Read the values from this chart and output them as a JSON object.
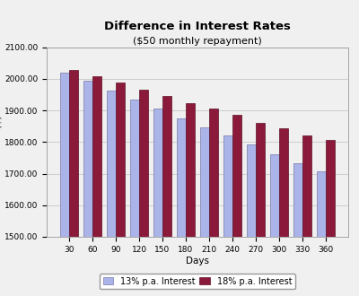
{
  "title": "Difference in Interest Rates",
  "subtitle": "($50 monthly repayment)",
  "xlabel": "Days",
  "days": [
    30,
    60,
    90,
    120,
    150,
    180,
    210,
    240,
    270,
    300,
    330,
    360
  ],
  "series_13": [
    2020,
    1993,
    1963,
    1935,
    1905,
    1875,
    1848,
    1820,
    1793,
    1762,
    1733,
    1706
  ],
  "series_18": [
    2027,
    2008,
    1988,
    1965,
    1947,
    1924,
    1905,
    1885,
    1862,
    1843,
    1821,
    1806
  ],
  "color_13": "#aab4e8",
  "color_18": "#8b1a3a",
  "ylim_min": 1500,
  "ylim_max": 2100,
  "yticks": [
    1500,
    1600,
    1700,
    1800,
    1900,
    2000,
    2100
  ],
  "legend_13": "13% p.a. Interest",
  "legend_18": "18% p.a. Interest",
  "bg_color": "#f0f0f0",
  "plot_bg_color": "#f0f0f0",
  "grid_color": "#cccccc",
  "title_fontsize": 9.5,
  "subtitle_fontsize": 8,
  "axis_fontsize": 7.5,
  "tick_fontsize": 6.5,
  "legend_fontsize": 7
}
